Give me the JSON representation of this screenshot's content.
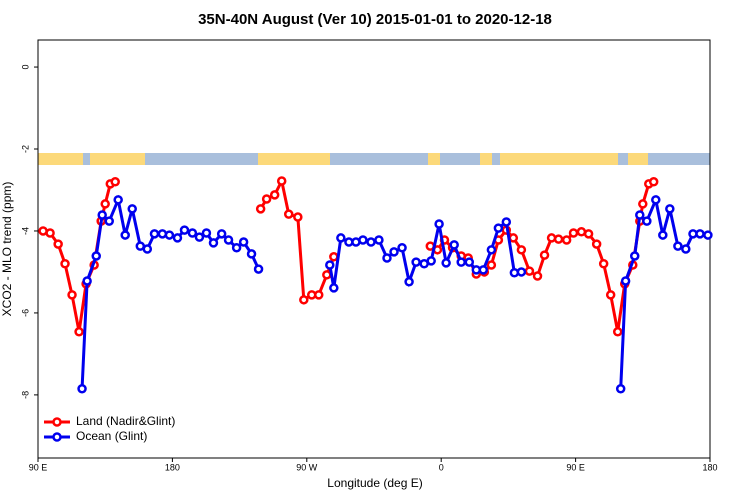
{
  "chart_data": {
    "type": "line",
    "title": "35N-40N August (Ver 10)   2015-01-01 to 2020-12-18",
    "x_label": "Longitude (deg E)",
    "y_label": "XCO2 - MLO trend (ppm)",
    "xlim": [
      90,
      540
    ],
    "ylim": [
      -9.54,
      0.66
    ],
    "xticks": [
      {
        "value": 90,
        "label": "90 E"
      },
      180,
      {
        "value": 270,
        "label": "90 W"
      },
      {
        "value": 360,
        "label": "0"
      },
      {
        "value": 450,
        "label": "90 E"
      },
      {
        "value": 540,
        "label": "180"
      }
    ],
    "yticks": [
      0,
      -2,
      -4,
      -6,
      -8
    ],
    "legend": "bottom-left",
    "series": [
      {
        "name": "Land (Nadir&Glint)",
        "color": "#ff0000",
        "x": [
          93.4,
          98.1,
          103.5,
          108.1,
          112.8,
          117.5,
          122.2,
          127.6,
          132.3,
          135,
          138.4,
          141.7,
          null,
          239.1,
          243.1,
          248.5,
          253.2,
          257.9,
          264.0,
          268.0,
          273.3,
          278.0,
          283.4,
          288.1,
          null,
          352.7,
          357.5,
          362.2,
          367.6,
          373.4,
          378.1,
          383.5,
          388.9,
          393.6,
          398.3,
          403.6,
          408.3,
          413.7,
          419.1,
          424.5,
          429.2,
          433.9,
          438.6,
          444,
          448.6,
          453.9,
          458.7,
          464.1,
          468.8,
          473.5,
          478.2,
          482.9,
          488.3,
          493,
          495,
          499,
          502.3
        ],
        "values": [
          -4.0,
          -4.05,
          -4.32,
          -4.8,
          -5.56,
          -6.46,
          -5.29,
          -4.83,
          -3.76,
          -3.34,
          -2.85,
          -2.8,
          null,
          -3.46,
          -3.22,
          -3.12,
          -2.78,
          -3.59,
          -3.66,
          -5.68,
          -5.56,
          -5.56,
          -5.07,
          -4.63,
          null,
          -4.37,
          -4.46,
          -4.22,
          -4.41,
          -4.61,
          -4.66,
          -5.05,
          -5.0,
          -4.83,
          -4.22,
          -3.98,
          -4.17,
          -4.46,
          -4.98,
          -5.1,
          -4.59,
          -4.17,
          -4.2,
          -4.22,
          -4.05,
          -4.02,
          -4.07,
          -4.32,
          -4.8,
          -5.56,
          -6.46,
          -5.29,
          -4.83,
          -3.76,
          -3.34,
          -2.85,
          -2.8
        ]
      },
      {
        "name": "Ocean (Glint)",
        "color": "#0000ee",
        "x": [
          119.5,
          122.9,
          129,
          133,
          137.7,
          143.7,
          148.4,
          153.1,
          158.5,
          163.2,
          168,
          173.3,
          178,
          183.4,
          188.1,
          193.4,
          198.1,
          202.8,
          207.5,
          213,
          217.6,
          223,
          227.7,
          233,
          237.7,
          null,
          285.4,
          288.1,
          292.8,
          298.2,
          302.9,
          307.6,
          313,
          318.3,
          323.7,
          328.4,
          333.8,
          338.5,
          343.2,
          348.6,
          353.3,
          358.6,
          363.3,
          368.7,
          373.4,
          378.8,
          383.5,
          388.2,
          393.6,
          398.3,
          403.6,
          409,
          413.7,
          null,
          480.2,
          483.5,
          489.6,
          493,
          497.7,
          503.7,
          508.4,
          513.1,
          518.5,
          523.8,
          528.6,
          533.3,
          538.6
        ],
        "values": [
          -7.85,
          -5.22,
          -4.61,
          -3.61,
          -3.76,
          -3.24,
          -4.1,
          -3.46,
          -4.37,
          -4.44,
          -4.07,
          -4.07,
          -4.1,
          -4.17,
          -3.98,
          -4.05,
          -4.15,
          -4.05,
          -4.29,
          -4.07,
          -4.22,
          -4.41,
          -4.27,
          -4.56,
          -4.93,
          null,
          -4.83,
          -5.39,
          -4.17,
          -4.27,
          -4.27,
          -4.22,
          -4.27,
          -4.22,
          -4.66,
          -4.51,
          -4.41,
          -5.24,
          -4.76,
          -4.8,
          -4.73,
          -3.83,
          -4.78,
          -4.34,
          -4.76,
          -4.76,
          -4.95,
          -4.95,
          -4.46,
          -3.93,
          -3.78,
          -5.02,
          -5.0,
          null,
          -7.85,
          -5.22,
          -4.61,
          -3.61,
          -3.76,
          -3.24,
          -4.1,
          -3.46,
          -4.37,
          -4.44,
          -4.07,
          -4.07,
          -4.1
        ]
      }
    ]
  }
}
